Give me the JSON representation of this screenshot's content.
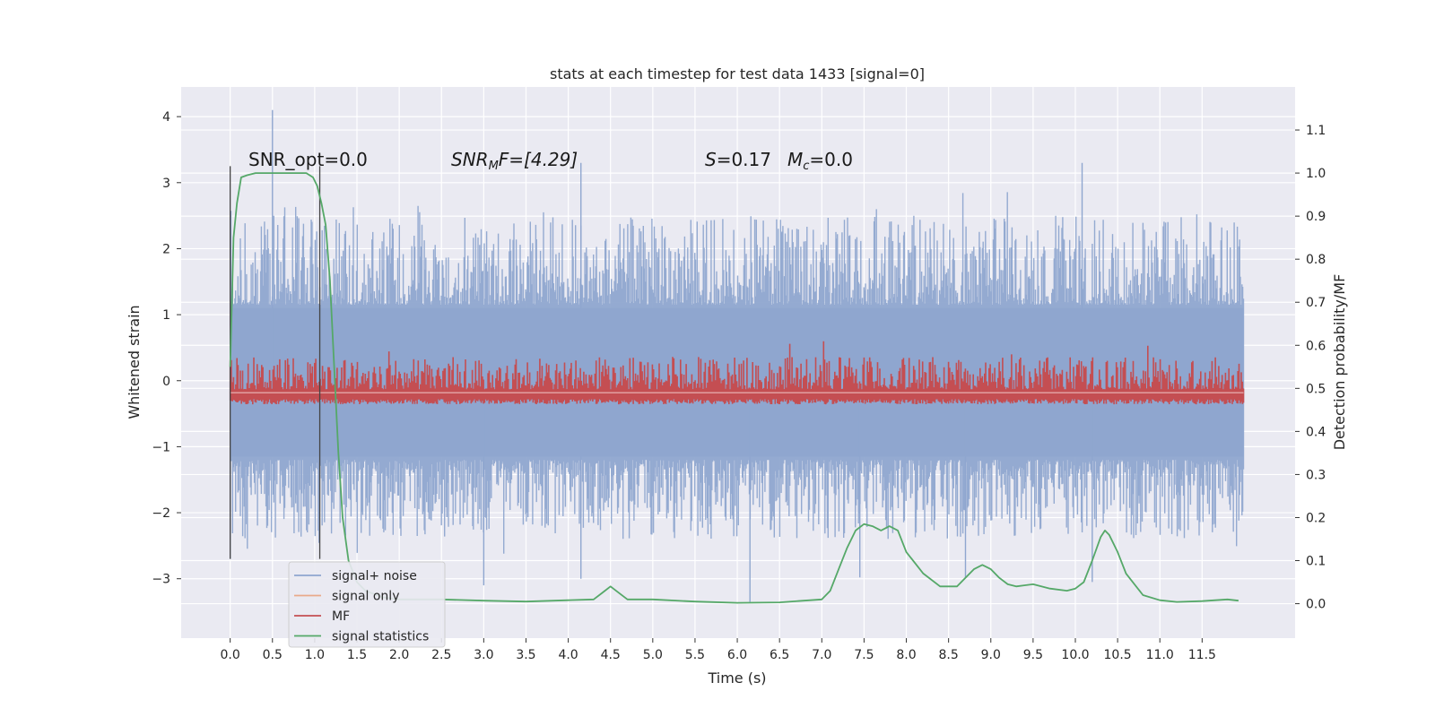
{
  "chart_data": {
    "type": "line",
    "title": "stats at each timestep for test data 1433 [signal=0]",
    "xlabel": "Time (s)",
    "ylabel": "Whitened strain",
    "y2label": "Detection probability/MF",
    "xlim": [
      -0.58,
      12.6
    ],
    "ylim": [
      -3.9,
      4.45
    ],
    "y2lim": [
      -0.08,
      1.2
    ],
    "x_ticks": [
      0.0,
      0.5,
      1.0,
      1.5,
      2.0,
      2.5,
      3.0,
      3.5,
      4.0,
      4.5,
      5.0,
      5.5,
      6.0,
      6.5,
      7.0,
      7.5,
      8.0,
      8.5,
      9.0,
      9.5,
      10.0,
      10.5,
      11.0,
      11.5
    ],
    "x_tick_labels": [
      "0.0",
      "0.5",
      "1.0",
      "1.5",
      "2.0",
      "2.5",
      "3.0",
      "3.5",
      "4.0",
      "4.5",
      "5.0",
      "5.5",
      "6.0",
      "6.5",
      "7.0",
      "7.5",
      "8.0",
      "8.5",
      "9.0",
      "9.5",
      "10.0",
      "10.5",
      "11.0",
      "11.5"
    ],
    "y_ticks": [
      -3,
      -2,
      -1,
      0,
      1,
      2,
      3,
      4
    ],
    "y_tick_labels": [
      "−3",
      "−2",
      "−1",
      "0",
      "1",
      "2",
      "3",
      "4"
    ],
    "y2_ticks": [
      0.0,
      0.1,
      0.2,
      0.3,
      0.4,
      0.5,
      0.6,
      0.7,
      0.8,
      0.9,
      1.0,
      1.1
    ],
    "y2_tick_labels": [
      "0.0",
      "0.1",
      "0.2",
      "0.3",
      "0.4",
      "0.5",
      "0.6",
      "0.7",
      "0.8",
      "0.9",
      "1.0",
      "1.1"
    ],
    "grid": true,
    "annotations": {
      "snr_opt": "SNR_opt=0.0",
      "snr_mf_prefix": "SNR",
      "snr_mf_sub": "M",
      "snr_mf_rest": "F=[4.29]",
      "s_label": "S",
      "s_value": "=0.17",
      "mc_label": "M",
      "mc_sub": "c",
      "mc_value": "=0.0"
    },
    "vlines": [
      {
        "x": 0.0,
        "y0": -2.7,
        "y1": 3.25
      },
      {
        "x": 1.06,
        "y0": -2.7,
        "y1": 3.25
      }
    ],
    "legend": {
      "placement": "lower-left",
      "entries": [
        {
          "label": "signal+ noise",
          "color": "#8fa6cf"
        },
        {
          "label": "signal only",
          "color": "#e9a98a"
        },
        {
          "label": "MF",
          "color": "#c44e52"
        },
        {
          "label": "signal statistics",
          "color": "#55a868"
        }
      ]
    },
    "series": [
      {
        "name": "signal+ noise",
        "color": "#8fa6cf",
        "axis": "left",
        "description_range": [
          -2.7,
          4.1
        ],
        "x_range": [
          0.0,
          11.99
        ],
        "spikes": [
          {
            "x": 0.5,
            "y": 4.1
          },
          {
            "x": 4.15,
            "y": 3.3
          },
          {
            "x": 10.08,
            "y": 3.3
          },
          {
            "x": 6.15,
            "y": -3.35
          },
          {
            "x": 3.0,
            "y": -3.1
          },
          {
            "x": 10.2,
            "y": -3.05
          },
          {
            "x": 4.15,
            "y": -3.0
          },
          {
            "x": 8.7,
            "y": -2.98
          },
          {
            "x": 7.45,
            "y": -2.98
          },
          {
            "x": 0.0,
            "y": -2.7
          }
        ]
      },
      {
        "name": "MF",
        "color": "#c44e52",
        "axis": "right",
        "x_range": [
          0.0,
          11.99
        ],
        "baseline": 0.49,
        "max": 0.62
      },
      {
        "name": "signal statistics",
        "color": "#55a868",
        "axis": "right",
        "x": [
          0.0,
          0.04,
          0.08,
          0.13,
          0.2,
          0.3,
          0.5,
          0.7,
          0.9,
          0.98,
          1.03,
          1.08,
          1.13,
          1.18,
          1.23,
          1.28,
          1.33,
          1.4,
          1.5,
          1.6,
          1.8,
          2.0,
          2.5,
          3.0,
          3.5,
          4.0,
          4.3,
          4.4,
          4.5,
          4.6,
          4.7,
          5.0,
          5.5,
          6.0,
          6.5,
          7.0,
          7.1,
          7.2,
          7.3,
          7.4,
          7.5,
          7.6,
          7.7,
          7.8,
          7.9,
          8.0,
          8.2,
          8.4,
          8.6,
          8.8,
          8.9,
          9.0,
          9.1,
          9.2,
          9.3,
          9.5,
          9.7,
          9.9,
          10.0,
          10.1,
          10.2,
          10.3,
          10.35,
          10.4,
          10.5,
          10.6,
          10.8,
          11.0,
          11.2,
          11.5,
          11.8,
          11.93
        ],
        "y": [
          0.55,
          0.85,
          0.93,
          0.99,
          0.995,
          1.0,
          1.0,
          1.0,
          1.0,
          0.99,
          0.97,
          0.93,
          0.88,
          0.75,
          0.55,
          0.35,
          0.2,
          0.1,
          0.05,
          0.03,
          0.015,
          0.01,
          0.01,
          0.007,
          0.005,
          0.008,
          0.01,
          0.025,
          0.04,
          0.025,
          0.01,
          0.01,
          0.005,
          0.002,
          0.003,
          0.01,
          0.03,
          0.08,
          0.13,
          0.17,
          0.185,
          0.18,
          0.17,
          0.18,
          0.17,
          0.12,
          0.07,
          0.04,
          0.04,
          0.08,
          0.09,
          0.08,
          0.06,
          0.045,
          0.04,
          0.045,
          0.035,
          0.03,
          0.035,
          0.05,
          0.1,
          0.155,
          0.17,
          0.16,
          0.12,
          0.07,
          0.02,
          0.008,
          0.004,
          0.006,
          0.01,
          0.007
        ]
      }
    ]
  }
}
